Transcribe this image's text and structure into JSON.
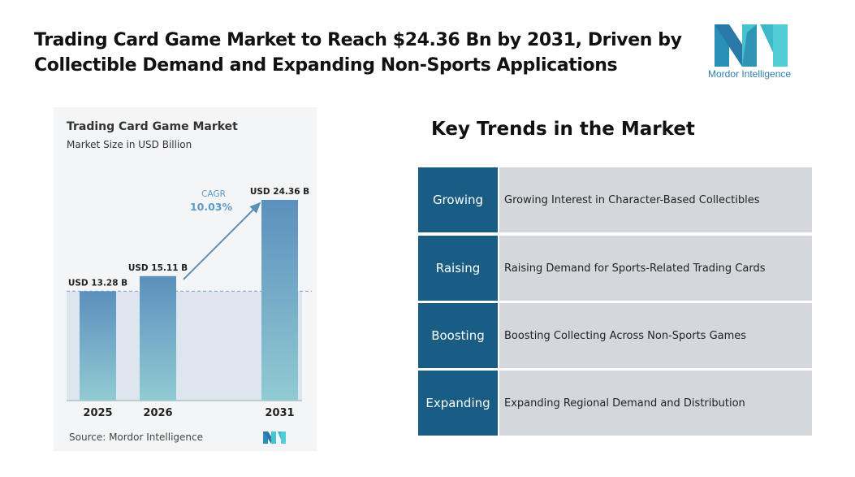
{
  "headline": "Trading Card Game Market to Reach $24.36 Bn by 2031, Driven by Collectible Demand and Expanding Non-Sports Applications",
  "logo": {
    "text": "Mordor Intelligence",
    "icon": "mordor-intelligence-logo"
  },
  "chart_data": {
    "type": "bar",
    "title": "Trading Card Game Market",
    "subtitle": "Market Size in USD Billion",
    "categories": [
      "2025",
      "2026",
      "2031"
    ],
    "values": [
      13.28,
      15.11,
      24.36
    ],
    "value_labels": [
      "USD 13.28 B",
      "USD 15.11 B",
      "USD 24.36 B"
    ],
    "cagr_label": "CAGR",
    "cagr_value": "10.03%",
    "ylim": [
      0,
      26
    ],
    "baseline_value": 13.28,
    "grid": false,
    "colors": {
      "bar_top": "#5b90bd",
      "bar_bottom": "#91cbd3",
      "shade": "#dde6ee",
      "arrow": "#5b8fb5",
      "cagr_text": "#5c9ac8"
    },
    "source": "Source: Mordor Intelligence"
  },
  "trends": {
    "title": "Key Trends in the Market",
    "items": [
      {
        "key": "Growing",
        "description": "Growing Interest in Character-Based Collectibles"
      },
      {
        "key": "Raising",
        "description": "Raising Demand for Sports-Related Trading Cards"
      },
      {
        "key": "Boosting",
        "description": "Boosting Collecting Across Non-Sports Games"
      },
      {
        "key": "Expanding",
        "description": "Expanding Regional Demand and Distribution"
      }
    ],
    "colors": {
      "key_bg": "#195c84",
      "desc_bg": "#d4d7dc"
    }
  }
}
